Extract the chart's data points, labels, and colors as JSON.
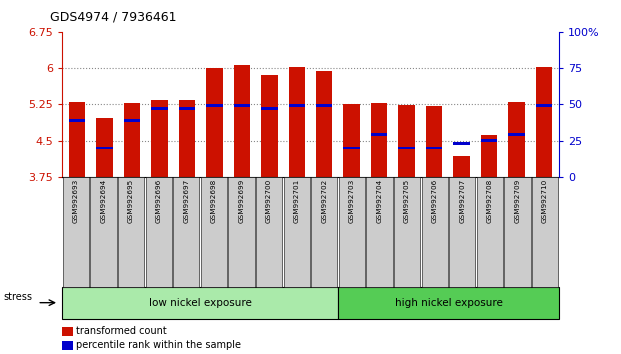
{
  "title": "GDS4974 / 7936461",
  "samples": [
    "GSM992693",
    "GSM992694",
    "GSM992695",
    "GSM992696",
    "GSM992697",
    "GSM992698",
    "GSM992699",
    "GSM992700",
    "GSM992701",
    "GSM992702",
    "GSM992703",
    "GSM992704",
    "GSM992705",
    "GSM992706",
    "GSM992707",
    "GSM992708",
    "GSM992709",
    "GSM992710"
  ],
  "bar_values": [
    5.31,
    4.97,
    5.28,
    5.35,
    5.35,
    6.0,
    6.07,
    5.85,
    6.02,
    5.95,
    5.25,
    5.27,
    5.24,
    5.22,
    4.19,
    4.62,
    5.3,
    6.02
  ],
  "blue_values": [
    4.92,
    4.35,
    4.92,
    5.17,
    5.17,
    5.22,
    5.22,
    5.17,
    5.22,
    5.22,
    4.35,
    4.62,
    4.35,
    4.35,
    4.45,
    4.5,
    4.62,
    5.22
  ],
  "ymin": 3.75,
  "ymax": 6.75,
  "yticks": [
    3.75,
    4.5,
    5.25,
    6.0,
    6.75
  ],
  "ytick_labels": [
    "3.75",
    "4.5",
    "5.25",
    "6",
    "6.75"
  ],
  "right_yticks": [
    0,
    25,
    50,
    75,
    100
  ],
  "right_ytick_labels": [
    "0",
    "25",
    "50",
    "75",
    "100%"
  ],
  "bar_color": "#cc1100",
  "blue_color": "#0000cc",
  "bar_width": 0.6,
  "n_low": 10,
  "n_high": 8,
  "low_label": "low nickel exposure",
  "high_label": "high nickel exposure",
  "stress_label": "stress",
  "legend_red": "transformed count",
  "legend_blue": "percentile rank within the sample",
  "group_low_color": "#aaeaaa",
  "group_high_color": "#55cc55",
  "xlabel_color": "#cc1100",
  "right_axis_color": "#0000cc",
  "grid_color": "#888888",
  "tick_label_bg": "#cccccc"
}
